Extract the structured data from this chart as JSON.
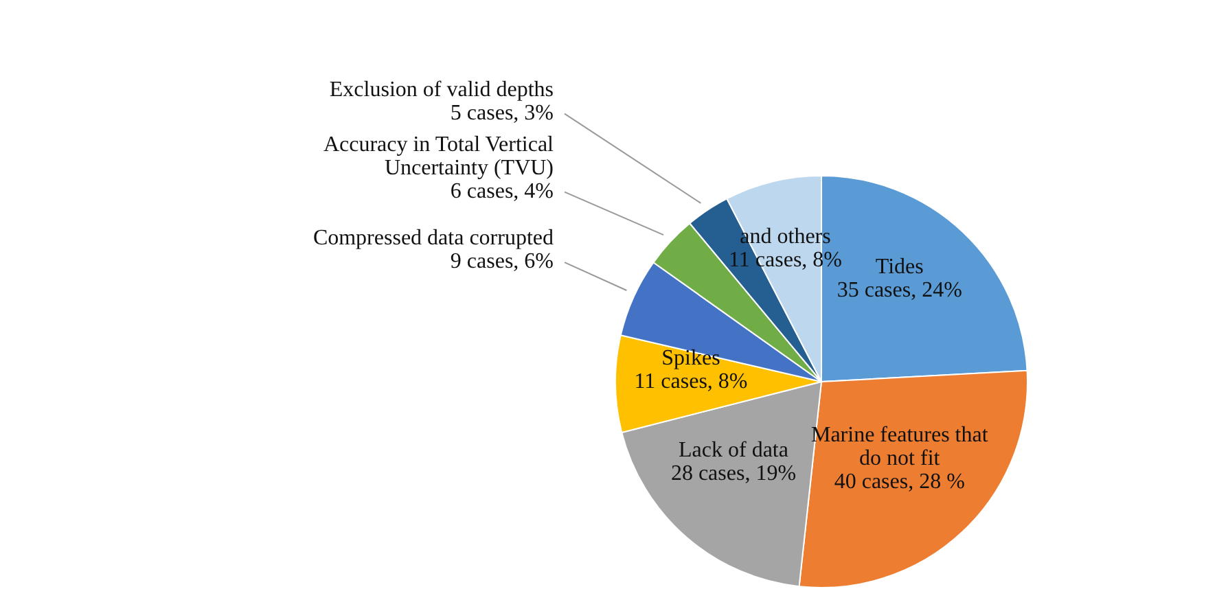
{
  "chart_data": {
    "type": "pie",
    "categories": [
      "Tides",
      "Marine features that do not fit",
      "Lack of data",
      "Spikes",
      "Compressed data corrupted",
      "Accuracy in Total Vertical Uncertainty (TVU)",
      "Exclusion of valid depths",
      "and others"
    ],
    "values": [
      35,
      40,
      28,
      11,
      9,
      6,
      5,
      11
    ],
    "value_labels": [
      "35 cases, 24%",
      "40 cases, 28 %",
      "28 cases, 19%",
      "11 cases, 8%",
      "9 cases, 6%",
      "6 cases, 4%",
      "5 cases, 3%",
      "11 cases, 8%"
    ],
    "colors": [
      "#5b9bd5",
      "#ed7d31",
      "#a5a5a5",
      "#ffc000",
      "#4472c4",
      "#70ad47",
      "#255e91",
      "#bdd7ee"
    ],
    "legend": false
  }
}
